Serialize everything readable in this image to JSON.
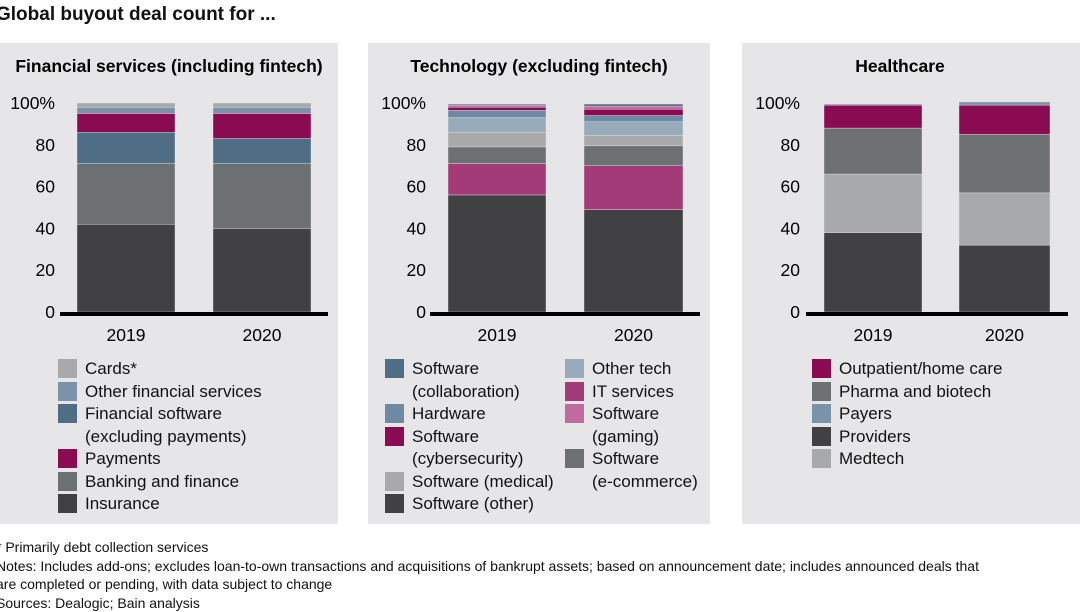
{
  "title": "Global buyout deal count for ...",
  "chart_data": [
    {
      "type": "bar",
      "stacked": true,
      "title": "Financial services (including fintech)",
      "categories": [
        "2019",
        "2020"
      ],
      "ylim": [
        0,
        100
      ],
      "yticks": [
        "0",
        "20",
        "40",
        "60",
        "80",
        "100%"
      ],
      "series": [
        {
          "name": "Insurance",
          "color": "#414143",
          "values": [
            42,
            40
          ]
        },
        {
          "name": "Banking and finance",
          "color": "#6d7073",
          "values": [
            29,
            31
          ]
        },
        {
          "name": "Financial software (excluding payments)",
          "color": "#4f6d85",
          "values": [
            15,
            12
          ]
        },
        {
          "name": "Payments",
          "color": "#8a0b52",
          "values": [
            9,
            12
          ]
        },
        {
          "name": "Other financial services",
          "color": "#7a93a8",
          "values": [
            3,
            3
          ]
        },
        {
          "name": "Cards*",
          "color": "#a8a9ab",
          "values": [
            2,
            2
          ]
        }
      ],
      "legend": [
        {
          "label": "Cards*",
          "color": "#a8a9ab"
        },
        {
          "label": "Other financial services",
          "color": "#7a93a8"
        },
        {
          "label": "Financial software\n(excluding payments)",
          "color": "#4f6d85"
        },
        {
          "label": "Payments",
          "color": "#8a0b52"
        },
        {
          "label": "Banking and finance",
          "color": "#6d7073"
        },
        {
          "label": "Insurance",
          "color": "#414143"
        }
      ]
    },
    {
      "type": "bar",
      "stacked": true,
      "title": "Technology (excluding fintech)",
      "categories": [
        "2019",
        "2020"
      ],
      "ylim": [
        0,
        100
      ],
      "yticks": [
        "0",
        "20",
        "40",
        "60",
        "80",
        "100%"
      ],
      "series": [
        {
          "name": "Software (other)",
          "color": "#414143",
          "values": [
            56,
            49
          ]
        },
        {
          "name": "IT services",
          "color": "#a33b78",
          "values": [
            15,
            21
          ]
        },
        {
          "name": "Software (e-commerce)",
          "color": "#6d7073",
          "values": [
            8,
            9.5
          ]
        },
        {
          "name": "Software (medical)",
          "color": "#a8a9ab",
          "values": [
            7,
            5
          ]
        },
        {
          "name": "Other tech",
          "color": "#98abbb",
          "values": [
            7,
            6.5
          ]
        },
        {
          "name": "Hardware",
          "color": "#6e8aa3",
          "values": [
            3.5,
            3
          ]
        },
        {
          "name": "Software (cybersecurity)",
          "color": "#8a0b52",
          "values": [
            1.5,
            3
          ]
        },
        {
          "name": "Software (gaming)",
          "color": "#c06a9e",
          "values": [
            1,
            1.5
          ]
        },
        {
          "name": "Software (collaboration)",
          "color": "#4f6d85",
          "values": [
            0.5,
            1
          ]
        }
      ],
      "legend": [
        {
          "label": "Software\n(collaboration)",
          "color": "#4f6d85"
        },
        {
          "label": "Hardware",
          "color": "#6e8aa3"
        },
        {
          "label": "Software\n(cybersecurity)",
          "color": "#8a0b52"
        },
        {
          "label": "Software (medical)",
          "color": "#a8a9ab"
        },
        {
          "label": "Software (other)",
          "color": "#414143"
        },
        {
          "label": "Other tech",
          "color": "#98abbb"
        },
        {
          "label": "IT services",
          "color": "#a33b78"
        },
        {
          "label": "Software\n(gaming)",
          "color": "#c06a9e"
        },
        {
          "label": "Software\n(e-commerce)",
          "color": "#6d7073"
        }
      ]
    },
    {
      "type": "bar",
      "stacked": true,
      "title": "Healthcare",
      "categories": [
        "2019",
        "2020"
      ],
      "ylim": [
        0,
        100
      ],
      "yticks": [
        "0",
        "20",
        "40",
        "60",
        "80",
        "100%"
      ],
      "series": [
        {
          "name": "Providers",
          "color": "#414143",
          "values": [
            38,
            32
          ]
        },
        {
          "name": "Medtech",
          "color": "#a8a9ab",
          "values": [
            28,
            25
          ]
        },
        {
          "name": "Pharma and biotech",
          "color": "#6d7073",
          "values": [
            22,
            28
          ]
        },
        {
          "name": "Outpatient/home care",
          "color": "#8a0b52",
          "values": [
            11,
            14
          ]
        },
        {
          "name": "Payers",
          "color": "#7a93a8",
          "values": [
            0.5,
            1.5
          ]
        }
      ],
      "legend": [
        {
          "label": "Outpatient/home care",
          "color": "#8a0b52"
        },
        {
          "label": "Pharma and biotech",
          "color": "#6d7073"
        },
        {
          "label": "Payers",
          "color": "#7a93a8"
        },
        {
          "label": "Providers",
          "color": "#414143"
        },
        {
          "label": "Medtech",
          "color": "#a8a9ab"
        }
      ]
    }
  ],
  "notes": [
    "* Primarily debt collection services",
    "Notes: Includes add-ons; excludes loan-to-own transactions and acquisitions of bankrupt assets; based on announcement date; includes announced deals that",
    "are completed or pending, with data subject to change",
    "Sources: Dealogic; Bain analysis"
  ]
}
